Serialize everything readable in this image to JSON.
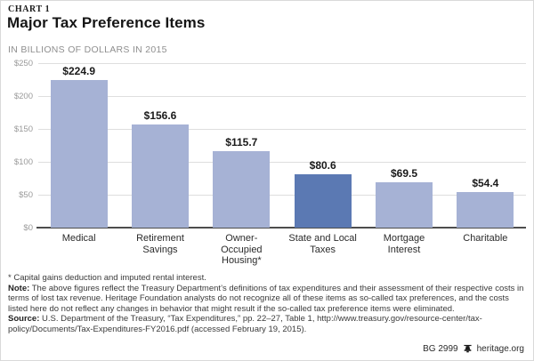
{
  "header": {
    "chart_number": "CHART 1",
    "title": "Major Tax Preference Items",
    "subtitle": "IN BILLIONS OF DOLLARS IN 2015"
  },
  "chart_data": {
    "type": "bar",
    "title": "Major Tax Preference Items",
    "units_label": "IN BILLIONS OF DOLLARS IN 2015",
    "categories": [
      "Medical",
      "Retirement Savings",
      "Owner-Occupied Housing*",
      "State and Local Taxes",
      "Mortgage Interest",
      "Charitable"
    ],
    "category_lines": [
      [
        "Medical"
      ],
      [
        "Retirement",
        "Savings"
      ],
      [
        "Owner-",
        "Occupied",
        "Housing*"
      ],
      [
        "State and Local",
        "Taxes"
      ],
      [
        "Mortgage",
        "Interest"
      ],
      [
        "Charitable"
      ]
    ],
    "values": [
      224.9,
      156.6,
      115.7,
      80.6,
      69.5,
      54.4
    ],
    "value_labels": [
      "$224.9",
      "$156.6",
      "$115.7",
      "$80.6",
      "$69.5",
      "$54.4"
    ],
    "highlighted_index": 3,
    "ylim": [
      0,
      250
    ],
    "yticks": [
      0,
      50,
      100,
      150,
      200,
      250
    ],
    "ytick_labels": [
      "$0",
      "$50",
      "$100",
      "$150",
      "$200",
      "$250"
    ],
    "grid": "horizontal",
    "legend": "none",
    "colors": {
      "bar": "#a6b2d5",
      "bar_highlight": "#5b79b3",
      "gridline": "#dedede",
      "axis": "#4d4d4d",
      "tick_label": "#9a9a9a"
    }
  },
  "footnotes": {
    "asterisk": "* Capital gains deduction and imputed rental interest.",
    "note_label": "Note:",
    "note_text": " The above figures reflect the Treasury Department’s definitions of tax expenditures and their assessment of their respective costs in terms of lost tax revenue. Heritage Foundation analysts do not recognize all of these items as so-called tax preferences, and the costs listed here do not reflect any changes in behavior that might result if the so-called tax preference items were eliminated.",
    "source_label": "Source:",
    "source_text": " U.S. Department of the Treasury, “Tax Expenditures,” pp. 22–27, Table 1, http://www.treasury.gov/resource-center/tax-policy/Documents/Tax-Expenditures-FY2016.pdf (accessed February 19, 2015)."
  },
  "footer": {
    "bg_number": "BG 2999",
    "site": "heritage.org",
    "logo_icon": "liberty-bell-icon"
  }
}
